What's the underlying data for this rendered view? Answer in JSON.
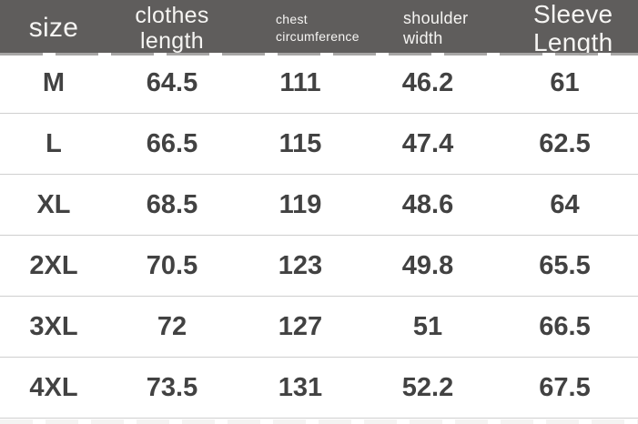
{
  "colors": {
    "header_bg": "#5f5d5c",
    "header_text": "#f6f5f3",
    "cell_text": "#424242",
    "divider": "#cfcfcf",
    "row_bg": "#ffffff"
  },
  "chart_data": {
    "type": "table",
    "columns": [
      {
        "id": "size",
        "label": "size",
        "lines": [
          "size"
        ]
      },
      {
        "id": "clothes-length",
        "label": "clothes length",
        "lines": [
          "clothes",
          "length"
        ]
      },
      {
        "id": "chest-circumference",
        "label": "chest circumference",
        "lines": [
          "chest",
          "circumference"
        ]
      },
      {
        "id": "shoulder-width",
        "label": "shoulder width",
        "lines": [
          "shoulder",
          "width"
        ]
      },
      {
        "id": "sleeve-length",
        "label": "Sleeve Length",
        "lines": [
          "Sleeve",
          "Length"
        ]
      }
    ],
    "rows": [
      {
        "cells": [
          "M",
          "64.5",
          "111",
          "46.2",
          "61"
        ]
      },
      {
        "cells": [
          "L",
          "66.5",
          "115",
          "47.4",
          "62.5"
        ]
      },
      {
        "cells": [
          "XL",
          "68.5",
          "119",
          "48.6",
          "64"
        ]
      },
      {
        "cells": [
          "2XL",
          "70.5",
          "123",
          "49.8",
          "65.5"
        ]
      },
      {
        "cells": [
          "3XL",
          "72",
          "127",
          "51",
          "66.5"
        ]
      },
      {
        "cells": [
          "4XL",
          "73.5",
          "131",
          "52.2",
          "67.5"
        ]
      }
    ]
  }
}
